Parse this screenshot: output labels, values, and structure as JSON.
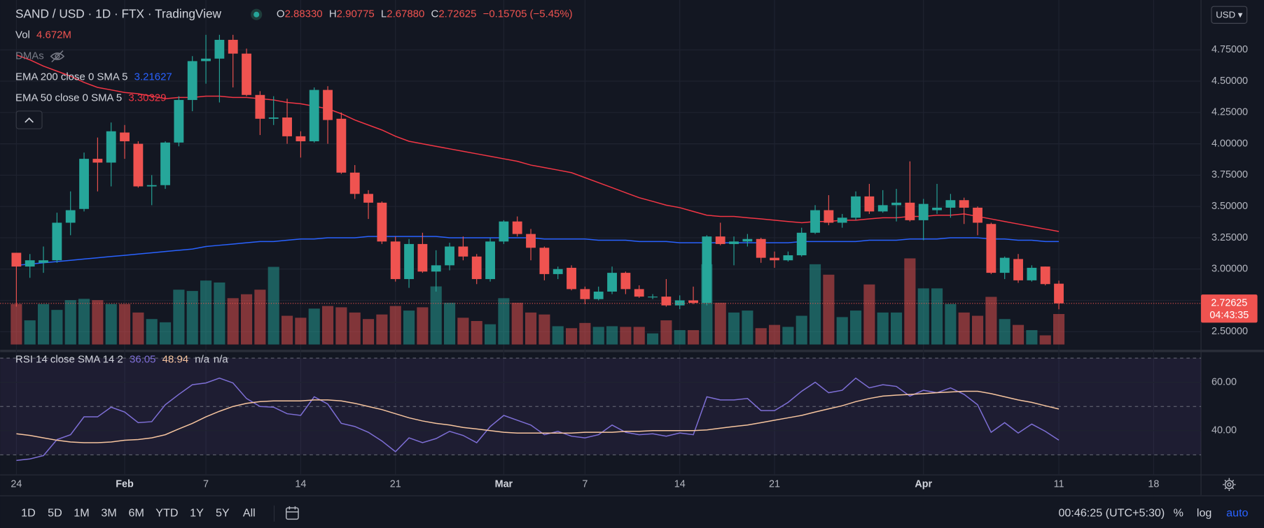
{
  "header": {
    "symbol": "SAND / USD · 1D · FTX · TradingView",
    "ohlc": [
      {
        "label": "O",
        "value": "2.88330"
      },
      {
        "label": "H",
        "value": "2.90775"
      },
      {
        "label": "L",
        "value": "2.67880"
      },
      {
        "label": "C",
        "value": "2.72625"
      }
    ],
    "change": "−0.15705 (−5.45%)",
    "dmas": "DMAs",
    "currency": "USD ▾"
  },
  "toolbar": {
    "ranges": [
      "1D",
      "5D",
      "1M",
      "3M",
      "6M",
      "YTD",
      "1Y",
      "5Y",
      "All"
    ],
    "clock": "00:46:25 (UTC+5:30)",
    "scale_options": [
      "%",
      "log",
      "auto"
    ]
  },
  "chart_data": [
    {
      "type": "candlestick",
      "colors": {
        "up": "#26a69a",
        "down": "#ef5350"
      },
      "open": [
        3.13,
        3.02,
        3.05,
        3.07,
        3.37,
        3.48,
        3.88,
        3.85,
        4.09,
        4.0,
        3.66,
        3.67,
        4.01,
        4.35,
        4.66,
        4.68,
        4.83,
        4.72,
        4.39,
        4.2,
        4.21,
        4.06,
        4.02,
        4.43,
        4.2,
        3.77,
        3.6,
        3.53,
        3.22,
        2.92,
        3.2,
        2.98,
        3.03,
        3.18,
        3.1,
        2.92,
        3.22,
        3.38,
        3.28,
        3.17,
        2.96,
        3.01,
        2.84,
        2.76,
        2.82,
        2.97,
        2.84,
        2.78,
        2.78,
        2.71,
        2.75,
        2.73,
        3.26,
        3.2,
        3.22,
        3.24,
        3.09,
        3.07,
        3.11,
        3.29,
        3.47,
        3.37,
        3.41,
        3.58,
        3.46,
        3.51,
        3.53,
        3.39,
        3.47,
        3.49,
        3.55,
        3.49,
        3.36,
        2.97,
        3.08,
        2.91,
        3.02,
        2.8833
      ],
      "high": [
        3.13,
        3.12,
        3.18,
        3.45,
        3.62,
        3.93,
        4.05,
        4.17,
        4.15,
        4.02,
        3.75,
        4.02,
        4.38,
        4.7,
        4.87,
        4.87,
        4.87,
        4.76,
        4.42,
        4.38,
        4.36,
        4.1,
        4.45,
        4.46,
        4.25,
        3.83,
        3.63,
        3.54,
        3.26,
        3.24,
        3.29,
        3.15,
        3.21,
        3.26,
        3.12,
        3.25,
        3.39,
        3.42,
        3.32,
        3.18,
        3.02,
        3.03,
        2.86,
        2.86,
        3.02,
        2.98,
        2.87,
        2.8,
        2.92,
        2.79,
        2.86,
        3.27,
        3.37,
        3.26,
        3.28,
        3.25,
        3.14,
        3.14,
        3.33,
        3.51,
        3.59,
        3.44,
        3.62,
        3.68,
        3.63,
        3.64,
        3.86,
        3.56,
        3.68,
        3.6,
        3.57,
        3.5,
        3.37,
        3.1,
        3.12,
        3.03,
        3.02,
        2.90775
      ],
      "low": [
        2.7,
        2.93,
        2.97,
        3.05,
        3.27,
        3.46,
        3.62,
        3.66,
        3.88,
        3.65,
        3.51,
        3.64,
        3.98,
        4.26,
        4.48,
        4.33,
        4.45,
        4.38,
        4.07,
        4.15,
        4.0,
        3.89,
        4.01,
        4.0,
        3.76,
        3.56,
        3.4,
        3.2,
        2.9,
        2.85,
        2.97,
        2.82,
        2.99,
        3.07,
        2.88,
        2.9,
        3.2,
        3.26,
        3.07,
        2.91,
        2.92,
        2.83,
        2.72,
        2.75,
        2.8,
        2.8,
        2.77,
        2.76,
        2.7,
        2.68,
        2.72,
        2.71,
        3.19,
        3.03,
        3.18,
        3.05,
        3.01,
        3.06,
        3.1,
        3.28,
        3.35,
        3.33,
        3.39,
        3.44,
        3.45,
        3.38,
        3.38,
        3.23,
        3.44,
        3.41,
        3.36,
        3.27,
        2.96,
        2.92,
        2.89,
        2.9,
        2.87,
        2.6788
      ],
      "close": [
        3.02,
        3.07,
        3.07,
        3.37,
        3.47,
        3.88,
        3.85,
        4.1,
        4.02,
        3.66,
        3.67,
        4.01,
        4.35,
        4.66,
        4.68,
        4.83,
        4.72,
        4.39,
        4.2,
        4.21,
        4.06,
        4.02,
        4.43,
        4.19,
        3.77,
        3.6,
        3.53,
        3.22,
        2.92,
        3.2,
        2.98,
        3.03,
        3.18,
        3.1,
        2.92,
        3.22,
        3.38,
        3.28,
        3.17,
        2.96,
        3.0,
        2.84,
        2.76,
        2.82,
        2.97,
        2.84,
        2.78,
        2.78,
        2.71,
        2.75,
        2.73,
        3.26,
        3.2,
        3.22,
        3.24,
        3.09,
        3.07,
        3.11,
        3.29,
        3.47,
        3.37,
        3.41,
        3.58,
        3.46,
        3.51,
        3.53,
        3.39,
        3.52,
        3.49,
        3.55,
        3.49,
        3.37,
        2.97,
        3.09,
        2.91,
        3.01,
        2.88,
        2.72625
      ],
      "volume": {
        "name": "Vol",
        "last_label": "4.672M",
        "values": [
          6.2,
          3.7,
          6.2,
          5.3,
          6.8,
          7.0,
          6.8,
          6.2,
          6.2,
          4.9,
          3.9,
          3.4,
          8.4,
          8.2,
          9.8,
          9.5,
          7.1,
          7.7,
          8.4,
          11.9,
          4.4,
          4.1,
          5.5,
          5.9,
          5.7,
          4.9,
          3.9,
          4.6,
          5.9,
          5.2,
          5.7,
          8.9,
          6.4,
          4.1,
          3.6,
          3.1,
          7.1,
          6.4,
          4.9,
          4.6,
          2.8,
          2.5,
          3.3,
          2.7,
          2.8,
          2.7,
          2.7,
          1.7,
          3.7,
          2.2,
          2.2,
          12.3,
          6.4,
          4.9,
          5.2,
          2.5,
          3.0,
          2.7,
          4.4,
          12.3,
          10.7,
          4.2,
          5.2,
          9.2,
          4.9,
          4.9,
          13.2,
          8.6,
          8.6,
          6.2,
          4.9,
          4.4,
          7.3,
          3.9,
          3.0,
          2.2,
          1.4,
          4.672
        ]
      },
      "series": [
        {
          "name": "EMA 200 close 0 SMA 5",
          "color": "#2962ff",
          "last_label": "3.21627",
          "values": [
            3.03,
            3.04,
            3.05,
            3.06,
            3.07,
            3.08,
            3.09,
            3.1,
            3.11,
            3.12,
            3.13,
            3.14,
            3.15,
            3.16,
            3.18,
            3.19,
            3.2,
            3.21,
            3.22,
            3.22,
            3.23,
            3.24,
            3.24,
            3.25,
            3.25,
            3.25,
            3.26,
            3.26,
            3.26,
            3.26,
            3.26,
            3.26,
            3.25,
            3.25,
            3.25,
            3.25,
            3.25,
            3.25,
            3.25,
            3.24,
            3.24,
            3.24,
            3.24,
            3.23,
            3.23,
            3.23,
            3.22,
            3.22,
            3.22,
            3.21,
            3.21,
            3.21,
            3.21,
            3.21,
            3.21,
            3.21,
            3.21,
            3.21,
            3.22,
            3.22,
            3.22,
            3.22,
            3.22,
            3.23,
            3.23,
            3.23,
            3.24,
            3.24,
            3.24,
            3.25,
            3.25,
            3.25,
            3.24,
            3.24,
            3.23,
            3.23,
            3.22,
            3.22
          ]
        },
        {
          "name": "EMA 50 close 0 SMA 5",
          "color": "#f23645",
          "last_label": "3.30329",
          "values": [
            4.71,
            4.67,
            4.62,
            4.58,
            4.54,
            4.49,
            4.45,
            4.43,
            4.41,
            4.4,
            4.38,
            4.36,
            4.37,
            4.37,
            4.38,
            4.38,
            4.37,
            4.37,
            4.36,
            4.35,
            4.33,
            4.32,
            4.3,
            4.28,
            4.24,
            4.19,
            4.15,
            4.11,
            4.06,
            4.02,
            4.0,
            3.98,
            3.96,
            3.94,
            3.92,
            3.9,
            3.88,
            3.86,
            3.83,
            3.81,
            3.79,
            3.77,
            3.73,
            3.69,
            3.65,
            3.61,
            3.57,
            3.54,
            3.51,
            3.49,
            3.46,
            3.43,
            3.42,
            3.42,
            3.41,
            3.4,
            3.39,
            3.38,
            3.37,
            3.38,
            3.38,
            3.39,
            3.39,
            3.4,
            3.41,
            3.41,
            3.42,
            3.42,
            3.43,
            3.43,
            3.44,
            3.42,
            3.4,
            3.38,
            3.36,
            3.34,
            3.32,
            3.3
          ]
        }
      ],
      "last_price_label": "2.72625",
      "countdown": "04:43:35",
      "ylim": [
        2.385,
        5.148
      ],
      "yticks": [
        {
          "value": 4.75,
          "label": "4.75000"
        },
        {
          "value": 4.5,
          "label": "4.50000"
        },
        {
          "value": 4.25,
          "label": "4.25000"
        },
        {
          "value": 4,
          "label": "4.00000"
        },
        {
          "value": 3.75,
          "label": "3.75000"
        },
        {
          "value": 3.5,
          "label": "3.50000"
        },
        {
          "value": 3.25,
          "label": "3.25000"
        },
        {
          "value": 3,
          "label": "3.00000"
        },
        {
          "value": 2.75,
          "label": "2.75000"
        },
        {
          "value": 2.5,
          "label": "2.50000"
        }
      ],
      "xlim": [
        -1.2,
        87.5
      ],
      "xticks": [
        {
          "value": 0,
          "label": "24"
        },
        {
          "value": 8,
          "label": "Feb"
        },
        {
          "value": 14,
          "label": "7"
        },
        {
          "value": 21,
          "label": "14"
        },
        {
          "value": 28,
          "label": "21"
        },
        {
          "value": 36,
          "label": "Mar"
        },
        {
          "value": 42,
          "label": "7"
        },
        {
          "value": 49,
          "label": "14"
        },
        {
          "value": 56,
          "label": "21"
        },
        {
          "value": 67,
          "label": "Apr"
        },
        {
          "value": 77,
          "label": "11"
        },
        {
          "value": 84,
          "label": "18"
        }
      ],
      "grid": true
    },
    {
      "type": "line",
      "legend": "RSI 14 close SMA 14 2",
      "na_labels": [
        "n/a",
        "n/a"
      ],
      "series": [
        {
          "color": "#7e6fd6",
          "last_label": "36.05",
          "values": [
            27.7,
            28.3,
            29.7,
            36.3,
            38.3,
            45.7,
            45.7,
            49.7,
            47.7,
            43.3,
            43.7,
            50.7,
            55,
            59,
            59.7,
            61.7,
            59.7,
            53.3,
            50,
            49.7,
            47,
            46.3,
            54,
            51,
            43,
            41.7,
            39.3,
            35.7,
            31.3,
            37,
            35,
            36.7,
            39.7,
            38,
            35,
            41.7,
            46.3,
            44.3,
            42.3,
            38.3,
            39.7,
            37.7,
            37,
            38.3,
            42.3,
            39.3,
            38.3,
            38.7,
            37.7,
            39,
            38.3,
            54,
            52.7,
            52.7,
            53.3,
            48.3,
            48.3,
            51.7,
            56.3,
            60,
            55.7,
            56.7,
            61.7,
            57.7,
            59,
            58.3,
            54.3,
            56.7,
            55.7,
            57.7,
            55,
            50.7,
            39.3,
            43.3,
            39,
            42.7,
            39.7,
            36.05
          ]
        },
        {
          "color": "#f7c59f",
          "last_label": "48.94",
          "values": [
            38.7,
            38,
            37,
            36,
            35.3,
            35,
            35,
            35.3,
            36,
            36.3,
            37,
            38.3,
            40.7,
            43,
            45.7,
            48,
            50,
            51.3,
            52,
            52.3,
            52.3,
            52.3,
            52.7,
            52.7,
            52.3,
            51.3,
            50,
            48.7,
            47,
            45.3,
            44,
            43,
            42.3,
            41.3,
            40.7,
            40,
            39.3,
            39,
            39,
            39,
            39,
            39,
            39.3,
            39.3,
            39.3,
            39.7,
            39.7,
            40,
            40,
            40,
            40,
            40.3,
            41,
            41.7,
            42.3,
            43.3,
            44.3,
            45.3,
            46.3,
            47.7,
            49,
            50.3,
            52,
            53.3,
            54.3,
            54.7,
            55,
            55.3,
            55.7,
            56,
            56.3,
            56.3,
            55.3,
            54,
            52.7,
            51.7,
            50.3,
            48.94
          ]
        }
      ],
      "ylim": [
        21.7,
        72.3
      ],
      "yticks": [
        {
          "value": 60,
          "label": "60.00"
        },
        {
          "value": 40,
          "label": "40.00"
        }
      ],
      "bands": [
        70,
        50,
        30
      ]
    }
  ]
}
